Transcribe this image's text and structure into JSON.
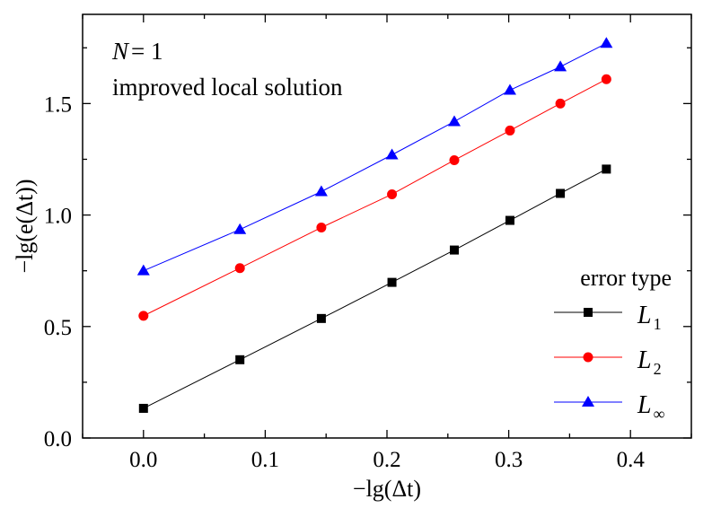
{
  "chart_data": {
    "type": "line",
    "title": "",
    "xlabel": "−lg(Δt)",
    "ylabel": "−lg(e(Δt))",
    "xlim": [
      -0.05,
      0.45
    ],
    "ylim": [
      0,
      1.9
    ],
    "xticks": [
      "0.0",
      "0.1",
      "0.2",
      "0.3",
      "0.4"
    ],
    "yticks": [
      "0.0",
      "0.5",
      "1.0",
      "1.5"
    ],
    "grid": false,
    "annotations": [
      "N = 1",
      "improved local solution"
    ],
    "legend": {
      "title": "error type",
      "placement": "bottom-right"
    },
    "x": [
      0.0,
      0.0792,
      0.1461,
      0.2041,
      0.2553,
      0.301,
      0.3424,
      0.3802
    ],
    "series": [
      {
        "name": "L1",
        "name_main": "L",
        "name_sub": "1",
        "color": "#000000",
        "marker": "square",
        "values": [
          0.133,
          0.351,
          0.536,
          0.698,
          0.843,
          0.976,
          1.097,
          1.206
        ]
      },
      {
        "name": "L2",
        "name_main": "L",
        "name_sub": "2",
        "color": "#ff0000",
        "marker": "circle",
        "values": [
          0.548,
          0.762,
          0.944,
          1.093,
          1.246,
          1.379,
          1.5,
          1.609
        ]
      },
      {
        "name": "L∞",
        "name_main": "L",
        "name_sub": "∞",
        "color": "#0000ff",
        "marker": "triangle",
        "values": [
          0.75,
          0.935,
          1.105,
          1.27,
          1.419,
          1.56,
          1.665,
          1.77
        ]
      }
    ]
  }
}
